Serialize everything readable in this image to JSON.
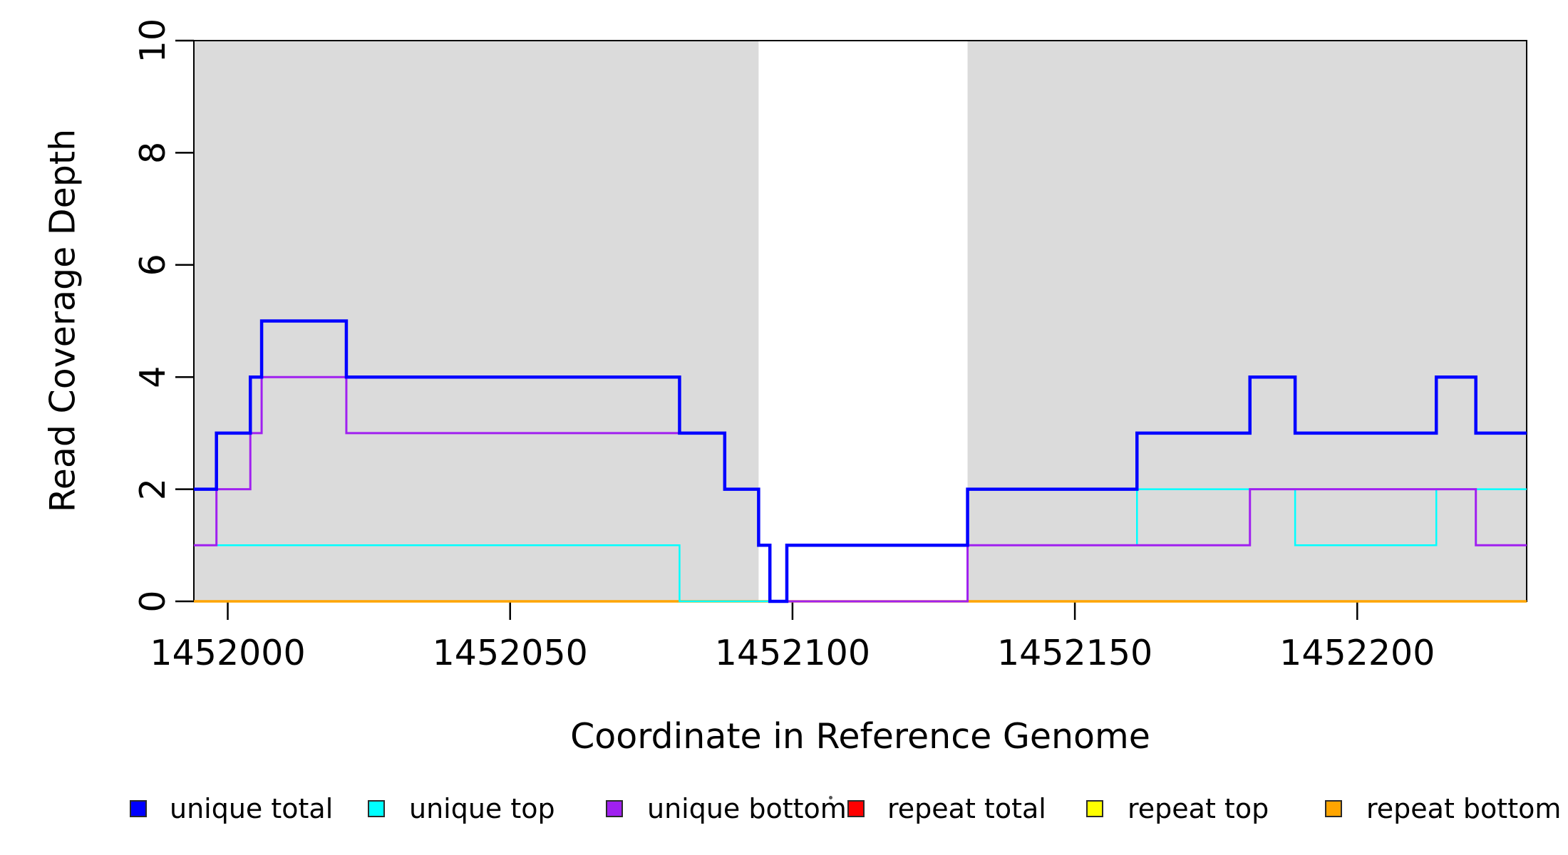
{
  "chart_data": {
    "type": "line",
    "subtype": "step-coverage",
    "title": "",
    "xlabel": "Coordinate in Reference Genome",
    "ylabel": "Read Coverage Depth",
    "xlim": [
      1451994,
      1452230
    ],
    "ylim": [
      0,
      10
    ],
    "x_ticks": [
      1452000,
      1452050,
      1452100,
      1452150,
      1452200
    ],
    "y_ticks": [
      0,
      2,
      4,
      6,
      8,
      10
    ],
    "grid": false,
    "legend_position": "bottom",
    "shade_color": "#DBDBDB",
    "shaded_regions": [
      [
        1451994,
        1452094
      ],
      [
        1452131,
        1452230
      ]
    ],
    "series": [
      {
        "name": "unique total",
        "color": "#0000FF",
        "line_width": 4.5,
        "steps": [
          [
            1451994,
            2
          ],
          [
            1451998,
            3
          ],
          [
            1452004,
            4
          ],
          [
            1452006,
            5
          ],
          [
            1452021,
            4
          ],
          [
            1452080,
            3
          ],
          [
            1452088,
            2
          ],
          [
            1452094,
            1
          ],
          [
            1452096,
            0
          ],
          [
            1452099,
            1
          ],
          [
            1452131,
            2
          ],
          [
            1452161,
            3
          ],
          [
            1452181,
            4
          ],
          [
            1452189,
            3
          ],
          [
            1452214,
            4
          ],
          [
            1452221,
            3
          ]
        ]
      },
      {
        "name": "unique top",
        "color": "#00FFFF",
        "line_width": 2.5,
        "steps": [
          [
            1451994,
            1
          ],
          [
            1452080,
            0
          ],
          [
            1452099,
            1
          ],
          [
            1452161,
            2
          ],
          [
            1452189,
            1
          ],
          [
            1452214,
            2
          ]
        ]
      },
      {
        "name": "unique bottom",
        "color": "#A020F0",
        "line_width": 3,
        "steps": [
          [
            1451994,
            1
          ],
          [
            1451998,
            2
          ],
          [
            1452004,
            3
          ],
          [
            1452006,
            4
          ],
          [
            1452021,
            3
          ],
          [
            1452088,
            2
          ],
          [
            1452094,
            1
          ],
          [
            1452096,
            0
          ],
          [
            1452131,
            1
          ],
          [
            1452181,
            2
          ],
          [
            1452221,
            1
          ]
        ]
      },
      {
        "name": "repeat total",
        "color": "#FF0000",
        "line_width": 3,
        "steps": [
          [
            1451994,
            0
          ]
        ]
      },
      {
        "name": "repeat top",
        "color": "#FFFF00",
        "line_width": 3,
        "steps": [
          [
            1451994,
            0
          ]
        ]
      },
      {
        "name": "repeat bottom",
        "color": "#FFA500",
        "line_width": 3.5,
        "steps": [
          [
            1451994,
            0
          ]
        ]
      }
    ],
    "draw_order": [
      3,
      4,
      5,
      1,
      2,
      0
    ]
  },
  "legend": {
    "items": [
      {
        "label": "unique total",
        "color": "#0000FF"
      },
      {
        "label": "unique top",
        "color": "#00FFFF"
      },
      {
        "label": "unique bottom",
        "color": "#A020F0"
      },
      {
        "label": "repeat total",
        "color": "#FF0000"
      },
      {
        "label": "repeat top",
        "color": "#FFFF00"
      },
      {
        "label": "repeat bottom",
        "color": "#FFA500"
      }
    ]
  }
}
